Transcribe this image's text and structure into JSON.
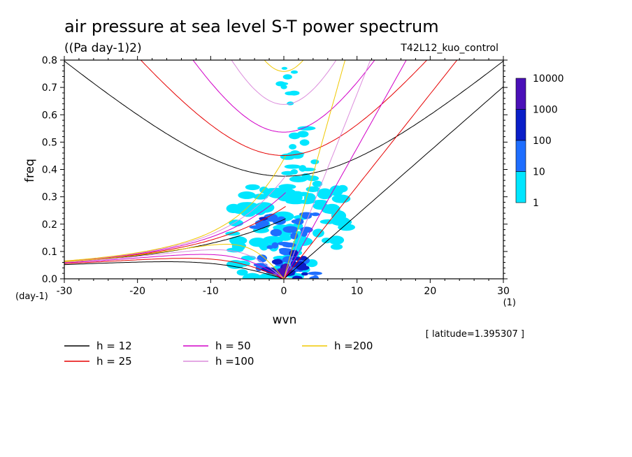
{
  "header": {
    "title": "air pressure at sea level S-T power spectrum",
    "units": "((Pa day-1)2)",
    "run_name": "T42L12_kuo_control"
  },
  "axes": {
    "xlabel": "wvn",
    "ylabel": "freq",
    "x_unit": "(1)",
    "y_unit": "(day-1)"
  },
  "latitude_note": "[ latitude=1.395307 ]",
  "colorbar": {
    "labels": [
      "10000",
      "1000",
      "100",
      "10",
      "1"
    ],
    "colors": [
      "#4a10b8",
      "#0a1ec8",
      "#1e6eff",
      "#00e6ff"
    ]
  },
  "legend": [
    {
      "label": "h = 12",
      "color": "#000000"
    },
    {
      "label": "h = 25",
      "color": "#e60000"
    },
    {
      "label": "h = 50",
      "color": "#d200c8"
    },
    {
      "label": "h =100",
      "color": "#dc8cdc"
    },
    {
      "label": "h =200",
      "color": "#f0c800"
    }
  ],
  "chart_data": {
    "type": "heatmap",
    "title": "air pressure at sea level S-T power spectrum",
    "subtitle": "((Pa day-1)2)",
    "xlabel": "wvn",
    "ylabel": "freq",
    "xlim": [
      -30,
      30
    ],
    "ylim": [
      0,
      0.8
    ],
    "x_ticks": [
      "-30",
      "-20",
      "-10",
      "0",
      "10",
      "20",
      "30"
    ],
    "y_ticks": [
      "0.0",
      "0.1",
      "0.2",
      "0.3",
      "0.4",
      "0.5",
      "0.6",
      "0.7",
      "0.8"
    ],
    "color_levels": [
      1,
      10,
      100,
      1000,
      10000
    ],
    "equivalent_depths_m": [
      12,
      25,
      50,
      100,
      200
    ],
    "power_regions": [
      {
        "wvn": [
          -3,
          3
        ],
        "freq": [
          0.0,
          0.12
        ],
        "level": "100-1000"
      },
      {
        "wvn": [
          -1,
          1
        ],
        "freq": [
          0.0,
          0.04
        ],
        "level": "1000-10000"
      },
      {
        "wvn": [
          -5,
          6
        ],
        "freq": [
          0.0,
          0.3
        ],
        "level": "10-100"
      },
      {
        "wvn": [
          -7,
          9
        ],
        "freq": [
          0.0,
          0.35
        ],
        "level": "1-10"
      },
      {
        "wvn": [
          1,
          5
        ],
        "freq": [
          0.3,
          0.55
        ],
        "level": "1-10"
      },
      {
        "wvn": [
          -1,
          2
        ],
        "freq": [
          0.65,
          0.78
        ],
        "level": "1-10"
      }
    ],
    "grid": false
  }
}
